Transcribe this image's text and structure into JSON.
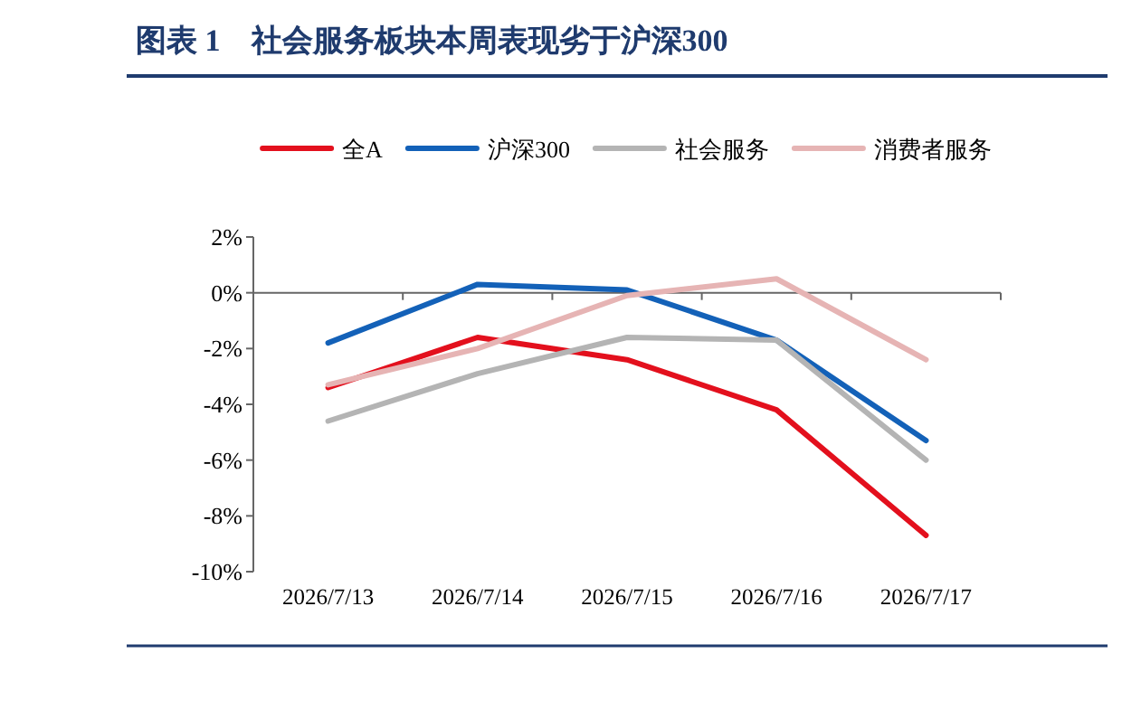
{
  "chart_data": {
    "type": "line",
    "title": "图表 1　社会服务板块本周表现劣于沪深300",
    "categories": [
      "2026/7/13",
      "2026/7/14",
      "2026/7/15",
      "2026/7/16",
      "2026/7/17"
    ],
    "series": [
      {
        "name": "全A",
        "color": "#e3101d",
        "values": [
          -3.4,
          -1.6,
          -2.4,
          -4.2,
          -8.7
        ]
      },
      {
        "name": "沪深300",
        "color": "#1361b8",
        "values": [
          -1.8,
          0.3,
          0.1,
          -1.7,
          -5.3
        ]
      },
      {
        "name": "社会服务",
        "color": "#b4b4b4",
        "values": [
          -4.6,
          -2.9,
          -1.6,
          -1.7,
          -6.0
        ]
      },
      {
        "name": "消费者服务",
        "color": "#e6b4b4",
        "values": [
          -3.3,
          -2.0,
          -0.1,
          0.5,
          -2.4
        ]
      }
    ],
    "ylim": [
      -10,
      2
    ],
    "yticks": [
      {
        "value": -10,
        "label": "-10%"
      },
      {
        "value": -8,
        "label": "-8%"
      },
      {
        "value": -6,
        "label": "-6%"
      },
      {
        "value": -4,
        "label": "-4%"
      },
      {
        "value": -2,
        "label": "-2%"
      },
      {
        "value": 0,
        "label": "0%"
      },
      {
        "value": 2,
        "label": "2%"
      }
    ],
    "legend": "top"
  }
}
